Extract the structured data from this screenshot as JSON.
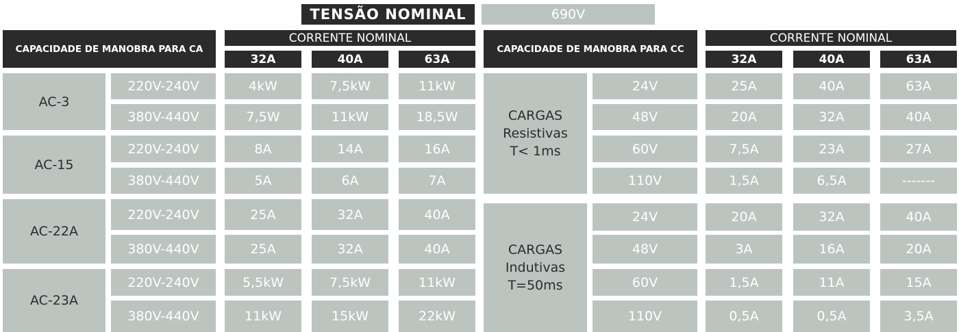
{
  "header": {
    "title": "TENSÃO NOMINAL",
    "value": "690V"
  },
  "ac_table": {
    "title": "CAPACIDADE  DE MANOBRA PARA CA",
    "current_label": "CORRENTE NOMINAL",
    "amps": [
      "32A",
      "40A",
      "63A"
    ],
    "categories": [
      {
        "name": "AC-3",
        "rows": [
          {
            "voltage": "220V-240V",
            "values": [
              "4kW",
              "7,5kW",
              "11kW"
            ]
          },
          {
            "voltage": "380V-440V",
            "values": [
              "7,5W",
              "11kW",
              "18,5W"
            ]
          }
        ]
      },
      {
        "name": "AC-15",
        "rows": [
          {
            "voltage": "220V-240V",
            "values": [
              "8A",
              "14A",
              "16A"
            ]
          },
          {
            "voltage": "380V-440V",
            "values": [
              "5A",
              "6A",
              "7A"
            ]
          }
        ]
      },
      {
        "name": "AC-22A",
        "rows": [
          {
            "voltage": "220V-240V",
            "values": [
              "25A",
              "32A",
              "40A"
            ]
          },
          {
            "voltage": "380V-440V",
            "values": [
              "25A",
              "32A",
              "40A"
            ]
          }
        ]
      },
      {
        "name": "AC-23A",
        "rows": [
          {
            "voltage": "220V-240V",
            "values": [
              "5,5kW",
              "7,5kW",
              "11kW"
            ]
          },
          {
            "voltage": "380V-440V",
            "values": [
              "11kW",
              "15kW",
              "22kW"
            ]
          }
        ]
      }
    ]
  },
  "dc_table": {
    "title": "CAPACIDADE DE MANOBRA PARA CC",
    "current_label": "CORRENTE NOMINAL",
    "amps": [
      "32A",
      "40A",
      "63A"
    ],
    "groups": [
      {
        "lines": [
          "CARGAS",
          "Resistivas",
          "T< 1ms"
        ],
        "rows": [
          {
            "voltage": "24V",
            "values": [
              "25A",
              "40A",
              "63A"
            ]
          },
          {
            "voltage": "48V",
            "values": [
              "20A",
              "32A",
              "40A"
            ]
          },
          {
            "voltage": "60V",
            "values": [
              "7,5A",
              "23A",
              "27A"
            ]
          },
          {
            "voltage": "110V",
            "values": [
              "1,5A",
              "6,5A",
              "-------"
            ]
          }
        ]
      },
      {
        "lines": [
          "CARGAS",
          "Indutivas",
          "T=50ms"
        ],
        "rows": [
          {
            "voltage": "24V",
            "values": [
              "20A",
              "32A",
              "40A"
            ]
          },
          {
            "voltage": "48V",
            "values": [
              "3A",
              "16A",
              "20A"
            ]
          },
          {
            "voltage": "60V",
            "values": [
              "1,5A",
              "11A",
              "15A"
            ]
          },
          {
            "voltage": "110V",
            "values": [
              "0,5A",
              "0,5A",
              "3,5A"
            ]
          }
        ]
      }
    ]
  }
}
